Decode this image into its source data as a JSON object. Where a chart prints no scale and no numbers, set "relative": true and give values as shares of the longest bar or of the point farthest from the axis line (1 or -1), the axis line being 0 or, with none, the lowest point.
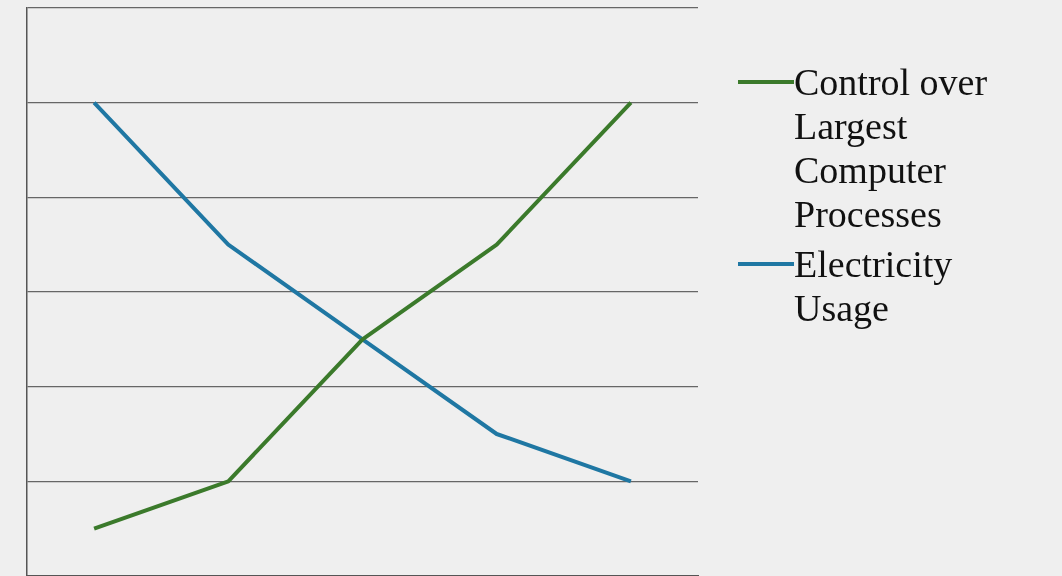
{
  "chart_data": {
    "type": "line",
    "relative": true,
    "categories": [
      null,
      null,
      null,
      null,
      null
    ],
    "grid": "y",
    "legend": "right",
    "marker": "none",
    "line_style": "solid",
    "series": [
      {
        "name": "Control over Largest Computer Processes",
        "color": "#3b7a2b",
        "values": [
          0.1,
          0.2,
          0.5,
          0.7,
          1
        ]
      },
      {
        "name": "Electricity Usage",
        "color": "#1f77a3",
        "values": [
          1,
          0.7,
          0.5,
          0.3,
          0.2
        ]
      }
    ]
  }
}
